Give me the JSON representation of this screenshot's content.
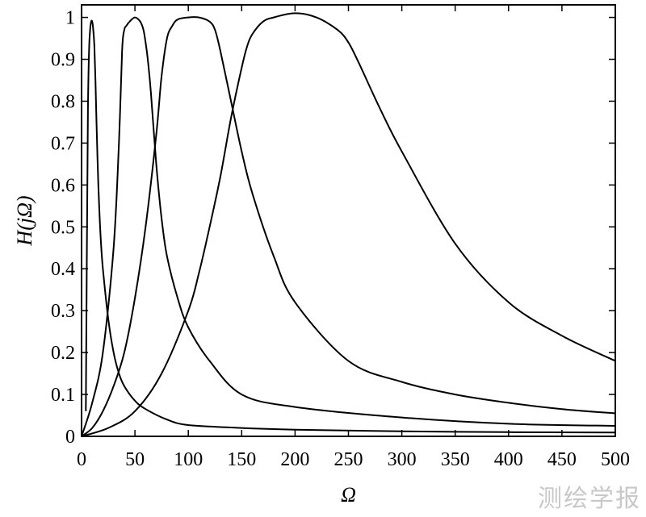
{
  "chart_data": {
    "type": "line",
    "title": "",
    "xlabel": "Ω",
    "ylabel": "H(jΩ)",
    "xlim": [
      0,
      500
    ],
    "ylim": [
      0,
      1.03
    ],
    "xticks": [
      0,
      50,
      100,
      150,
      200,
      250,
      300,
      350,
      400,
      450,
      500
    ],
    "yticks": [
      0,
      0.1,
      0.2,
      0.3,
      0.4,
      0.5,
      0.6,
      0.7,
      0.8,
      0.9,
      1
    ],
    "ytick_labels": [
      "0",
      "0.1",
      "0.2",
      "0.3",
      "0.4",
      "0.5",
      "0.6",
      "0.7",
      "0.8",
      "0.9",
      "1"
    ],
    "grid": false,
    "legend": "none",
    "series": [
      {
        "x": [
          4,
          5,
          6,
          7,
          8,
          9,
          10,
          11,
          12,
          13,
          14,
          15,
          16,
          18,
          20,
          25,
          30,
          35,
          40,
          50,
          60,
          80,
          100,
          150,
          200,
          300,
          400,
          500
        ],
        "y": [
          0.06,
          0.45,
          0.78,
          0.92,
          0.97,
          0.99,
          0.99,
          0.97,
          0.93,
          0.85,
          0.75,
          0.66,
          0.58,
          0.47,
          0.4,
          0.28,
          0.2,
          0.15,
          0.12,
          0.085,
          0.065,
          0.04,
          0.027,
          0.02,
          0.016,
          0.012,
          0.01,
          0.009
        ]
      },
      {
        "x": [
          0,
          10,
          20,
          30,
          35,
          38,
          40,
          42,
          45,
          50,
          55,
          58,
          60,
          62,
          65,
          70,
          75,
          80,
          90,
          100,
          120,
          150,
          200,
          300,
          400,
          500
        ],
        "y": [
          0,
          0.08,
          0.2,
          0.45,
          0.7,
          0.92,
          0.97,
          0.98,
          0.99,
          1.0,
          0.99,
          0.97,
          0.94,
          0.9,
          0.82,
          0.65,
          0.52,
          0.43,
          0.33,
          0.26,
          0.18,
          0.1,
          0.07,
          0.045,
          0.03,
          0.025
        ]
      },
      {
        "x": [
          0,
          10,
          20,
          30,
          40,
          50,
          60,
          70,
          75,
          80,
          85,
          90,
          100,
          110,
          120,
          125,
          130,
          140,
          150,
          160,
          180,
          200,
          250,
          300,
          350,
          400,
          450,
          500
        ],
        "y": [
          0,
          0.02,
          0.06,
          0.12,
          0.2,
          0.33,
          0.5,
          0.72,
          0.86,
          0.95,
          0.98,
          0.995,
          1.0,
          1.0,
          0.99,
          0.97,
          0.92,
          0.8,
          0.68,
          0.58,
          0.43,
          0.32,
          0.18,
          0.13,
          0.1,
          0.08,
          0.065,
          0.055
        ]
      },
      {
        "x": [
          0,
          25,
          50,
          75,
          100,
          110,
          120,
          130,
          140,
          150,
          155,
          160,
          170,
          180,
          200,
          220,
          240,
          250,
          260,
          280,
          300,
          350,
          400,
          450,
          500
        ],
        "y": [
          0,
          0.02,
          0.06,
          0.15,
          0.3,
          0.39,
          0.5,
          0.62,
          0.76,
          0.88,
          0.93,
          0.96,
          0.99,
          1.0,
          1.01,
          1.0,
          0.97,
          0.94,
          0.89,
          0.78,
          0.68,
          0.46,
          0.32,
          0.24,
          0.18
        ]
      }
    ]
  },
  "watermark": "测绘学报"
}
